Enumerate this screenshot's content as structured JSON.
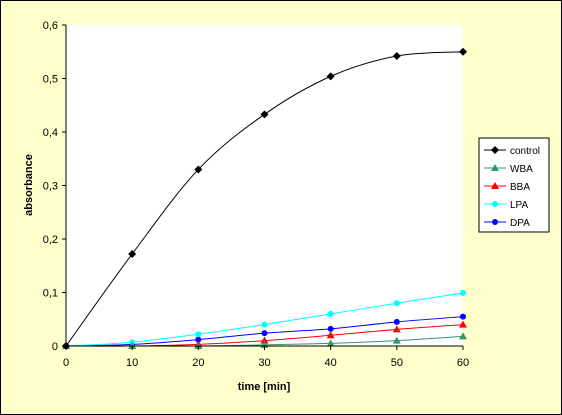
{
  "chart_data": {
    "type": "line",
    "xlabel": "time [min]",
    "ylabel": "absorbance",
    "xlim": [
      0,
      60
    ],
    "ylim": [
      0,
      0.6
    ],
    "x_ticks": [
      "0",
      "10",
      "20",
      "30",
      "40",
      "50",
      "60"
    ],
    "y_ticks": [
      "0",
      "0,1",
      "0,2",
      "0,3",
      "0,4",
      "0,5",
      "0,6"
    ],
    "grid": false,
    "legend_position": "right",
    "background": "#ffffcc",
    "plot_background": "#ffffff",
    "x": [
      0,
      10,
      20,
      30,
      40,
      50,
      60
    ],
    "series": [
      {
        "name": "control",
        "color": "#000000",
        "marker": "diamond",
        "values": [
          0,
          0.172,
          0.33,
          0.433,
          0.504,
          0.542,
          0.55
        ]
      },
      {
        "name": "WBA",
        "color": "#339966",
        "marker": "triangle",
        "values": [
          0,
          0,
          0,
          0.002,
          0.005,
          0.01,
          0.018
        ]
      },
      {
        "name": "BBA",
        "color": "#ff0000",
        "marker": "triangle",
        "values": [
          0,
          0,
          0.003,
          0.01,
          0.02,
          0.031,
          0.04
        ]
      },
      {
        "name": "LPA",
        "color": "#00ffff",
        "marker": "circle",
        "values": [
          0,
          0.007,
          0.022,
          0.04,
          0.06,
          0.08,
          0.099
        ]
      },
      {
        "name": "DPA",
        "color": "#0000ff",
        "marker": "circle",
        "values": [
          0,
          0.003,
          0.012,
          0.024,
          0.032,
          0.045,
          0.055
        ]
      }
    ]
  }
}
